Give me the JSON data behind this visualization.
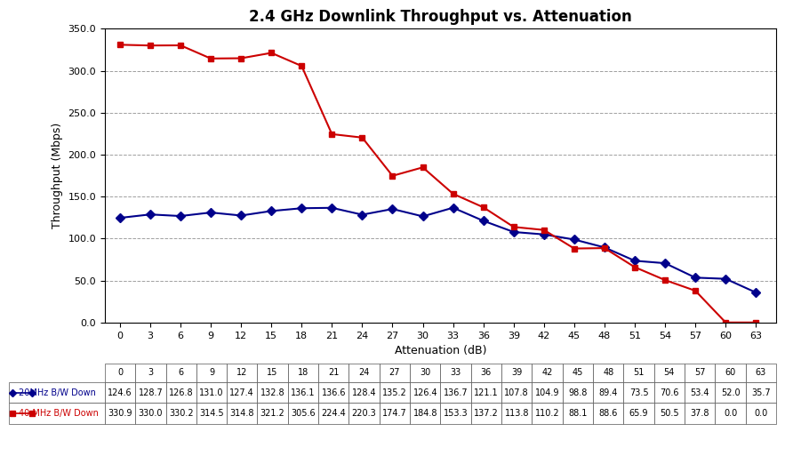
{
  "title": "2.4 GHz Downlink Throughput vs. Attenuation",
  "xlabel": "Attenuation (dB)",
  "ylabel": "Throughput (Mbps)",
  "x_values": [
    0,
    3,
    6,
    9,
    12,
    15,
    18,
    21,
    24,
    27,
    30,
    33,
    36,
    39,
    42,
    45,
    48,
    51,
    54,
    57,
    60,
    63
  ],
  "series": [
    {
      "label": "20MHz B/W Down",
      "color": "#00008B",
      "marker": "D",
      "values": [
        124.6,
        128.7,
        126.8,
        131.0,
        127.4,
        132.8,
        136.1,
        136.6,
        128.4,
        135.2,
        126.4,
        136.7,
        121.1,
        107.8,
        104.9,
        98.8,
        89.4,
        73.5,
        70.6,
        53.4,
        52.0,
        35.7
      ]
    },
    {
      "label": "40 MHz B/W Down",
      "color": "#CC0000",
      "marker": "s",
      "values": [
        330.9,
        330.0,
        330.2,
        314.5,
        314.8,
        321.2,
        305.6,
        224.4,
        220.3,
        174.7,
        184.8,
        153.3,
        137.2,
        113.8,
        110.2,
        88.1,
        88.6,
        65.9,
        50.5,
        37.8,
        0.0,
        0.0
      ]
    }
  ],
  "ylim": [
    0.0,
    350.0
  ],
  "yticks": [
    0.0,
    50.0,
    100.0,
    150.0,
    200.0,
    250.0,
    300.0,
    350.0
  ],
  "background_color": "#FFFFFF",
  "plot_bg_color": "#FFFFFF",
  "grid_color": "#888888",
  "title_fontsize": 12,
  "axis_label_fontsize": 9,
  "tick_fontsize": 8,
  "table_fontsize": 7
}
